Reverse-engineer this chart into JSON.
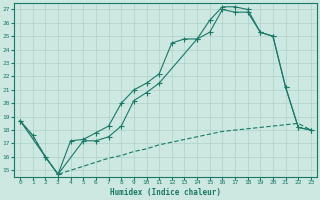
{
  "xlabel": "Humidex (Indice chaleur)",
  "bg_color": "#cce8e0",
  "grid_color": "#a8ccC4",
  "line_color": "#1a7868",
  "xlim": [
    -0.5,
    23.5
  ],
  "ylim": [
    14.5,
    27.5
  ],
  "xticks": [
    0,
    1,
    2,
    3,
    4,
    5,
    6,
    7,
    8,
    9,
    10,
    11,
    12,
    13,
    14,
    15,
    16,
    17,
    18,
    19,
    20,
    21,
    22,
    23
  ],
  "yticks": [
    15,
    16,
    17,
    18,
    19,
    20,
    21,
    22,
    23,
    24,
    25,
    26,
    27
  ],
  "line1_x": [
    0,
    1,
    2,
    3,
    4,
    5,
    6,
    7,
    8,
    9,
    10,
    11,
    12,
    13,
    14,
    15,
    16,
    17,
    18,
    19,
    20,
    21,
    22,
    23
  ],
  "line1_y": [
    18.7,
    17.6,
    16.0,
    14.7,
    17.2,
    17.3,
    17.8,
    18.3,
    20.0,
    21.0,
    21.5,
    22.2,
    24.5,
    24.8,
    24.8,
    26.2,
    27.2,
    27.2,
    27.0,
    25.3,
    25.0,
    21.2,
    18.2,
    18.0
  ],
  "line2_x": [
    0,
    2,
    3,
    5,
    6,
    7,
    8,
    9,
    10,
    11,
    14,
    15,
    16,
    17,
    18,
    19,
    20,
    21,
    22,
    23
  ],
  "line2_y": [
    18.7,
    16.0,
    14.7,
    17.2,
    17.2,
    17.5,
    18.3,
    20.2,
    20.8,
    21.5,
    24.8,
    25.3,
    27.0,
    26.8,
    26.8,
    25.3,
    25.0,
    21.2,
    18.2,
    18.0
  ],
  "line3_x": [
    0,
    1,
    2,
    3,
    4,
    5,
    6,
    7,
    8,
    9,
    10,
    11,
    12,
    13,
    14,
    15,
    16,
    17,
    18,
    19,
    20,
    21,
    22,
    23
  ],
  "line3_y": [
    18.7,
    17.6,
    16.0,
    14.7,
    15.0,
    15.3,
    15.6,
    15.9,
    16.1,
    16.4,
    16.6,
    16.9,
    17.1,
    17.3,
    17.5,
    17.7,
    17.9,
    18.0,
    18.1,
    18.2,
    18.3,
    18.4,
    18.5,
    18.0
  ]
}
